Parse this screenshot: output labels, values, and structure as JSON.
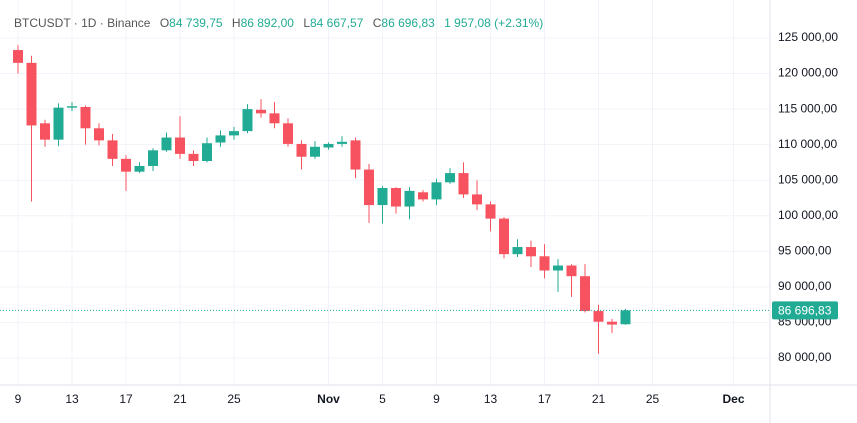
{
  "header": {
    "symbol": "BTCUSDT · 1D · Binance",
    "ohlc": [
      {
        "label": "O",
        "value": "84 739,75"
      },
      {
        "label": "H",
        "value": "86 892,00"
      },
      {
        "label": "L",
        "value": "84 667,57"
      },
      {
        "label": "C",
        "value": "86 696,83"
      }
    ],
    "change": "1 957,08 (+2.31%)"
  },
  "chart_data": {
    "type": "candlestick",
    "categories": [
      "9",
      null,
      null,
      null,
      "13",
      null,
      null,
      null,
      "17",
      null,
      null,
      null,
      "21",
      null,
      null,
      null,
      "25",
      null,
      null,
      null,
      null,
      null,
      null,
      "Nov",
      null,
      null,
      null,
      "5",
      null,
      null,
      null,
      "9",
      null,
      null,
      null,
      "13",
      null,
      null,
      null,
      "17",
      null,
      null,
      null,
      "21",
      null,
      null,
      null,
      "25",
      null,
      null,
      null,
      null,
      null,
      "Dec",
      null,
      null
    ],
    "open": [
      123300,
      121500,
      113000,
      110700,
      115200,
      115300,
      112300,
      110600,
      108000,
      106200,
      107000,
      109200,
      111000,
      108700,
      107700,
      110300,
      111300,
      111900,
      114900,
      114400,
      113000,
      110100,
      108300,
      109600,
      110100,
      110600,
      106500,
      101500,
      103900,
      101300,
      103300,
      102300,
      104700,
      106000,
      103000,
      101600,
      99600,
      94600,
      95600,
      94300,
      92300,
      93000,
      91500,
      86600,
      85100,
      84739.75,
      null,
      null,
      null,
      null,
      null,
      null,
      null,
      null,
      null,
      null
    ],
    "high": [
      124000,
      122500,
      113500,
      115800,
      116000,
      115500,
      113000,
      111500,
      108500,
      107500,
      109500,
      111700,
      114000,
      109200,
      111000,
      112000,
      112500,
      115700,
      116400,
      116000,
      113700,
      110600,
      110500,
      110300,
      111200,
      111000,
      107300,
      104200,
      104000,
      104000,
      103600,
      105200,
      106700,
      107500,
      105000,
      102000,
      99800,
      96700,
      96500,
      96000,
      93900,
      93200,
      93200,
      87500,
      85500,
      86892,
      null,
      null,
      null,
      null,
      null,
      null,
      null,
      null,
      null,
      null
    ],
    "low": [
      120000,
      102000,
      109700,
      109800,
      114700,
      110000,
      109900,
      107000,
      103500,
      106000,
      106300,
      109000,
      108000,
      107000,
      107500,
      109700,
      110700,
      111600,
      113800,
      112300,
      109700,
      106500,
      108000,
      109300,
      109700,
      105300,
      99000,
      98900,
      100300,
      99500,
      102000,
      101500,
      104500,
      102500,
      100800,
      97800,
      94000,
      94200,
      92800,
      91200,
      89300,
      88600,
      86400,
      80600,
      83500,
      84667.57,
      null,
      null,
      null,
      null,
      null,
      null,
      null,
      null,
      null,
      null
    ],
    "close": [
      121500,
      112700,
      110700,
      115200,
      115400,
      112300,
      110600,
      108000,
      106200,
      107000,
      109200,
      111000,
      108700,
      107700,
      110200,
      111300,
      111900,
      115000,
      114400,
      113000,
      110100,
      108300,
      109700,
      110100,
      110400,
      106500,
      101500,
      103900,
      101300,
      103500,
      102300,
      104700,
      106000,
      103000,
      101600,
      99600,
      94600,
      95600,
      94300,
      92300,
      93000,
      91500,
      86600,
      85100,
      84700,
      86696.83,
      null,
      null,
      null,
      null,
      null,
      null,
      null,
      null,
      null,
      null
    ],
    "up_color": "#22ab94",
    "down_color": "#f7525f",
    "ylim": [
      76200,
      130340
    ],
    "yticks": [
      {
        "value": 80000,
        "label": "80 000,00"
      },
      {
        "value": 85000,
        "label": "85 000,00"
      },
      {
        "value": 90000,
        "label": "90 000,00"
      },
      {
        "value": 95000,
        "label": "95 000,00"
      },
      {
        "value": 100000,
        "label": "100 000,00"
      },
      {
        "value": 105000,
        "label": "105 000,00"
      },
      {
        "value": 110000,
        "label": "110 000,00"
      },
      {
        "value": 115000,
        "label": "115 000,00"
      },
      {
        "value": 120000,
        "label": "120 000,00"
      },
      {
        "value": 125000,
        "label": "125 000,00"
      }
    ],
    "grid": true,
    "last_price": {
      "value": 86696.83,
      "label": "86 696,83"
    }
  }
}
